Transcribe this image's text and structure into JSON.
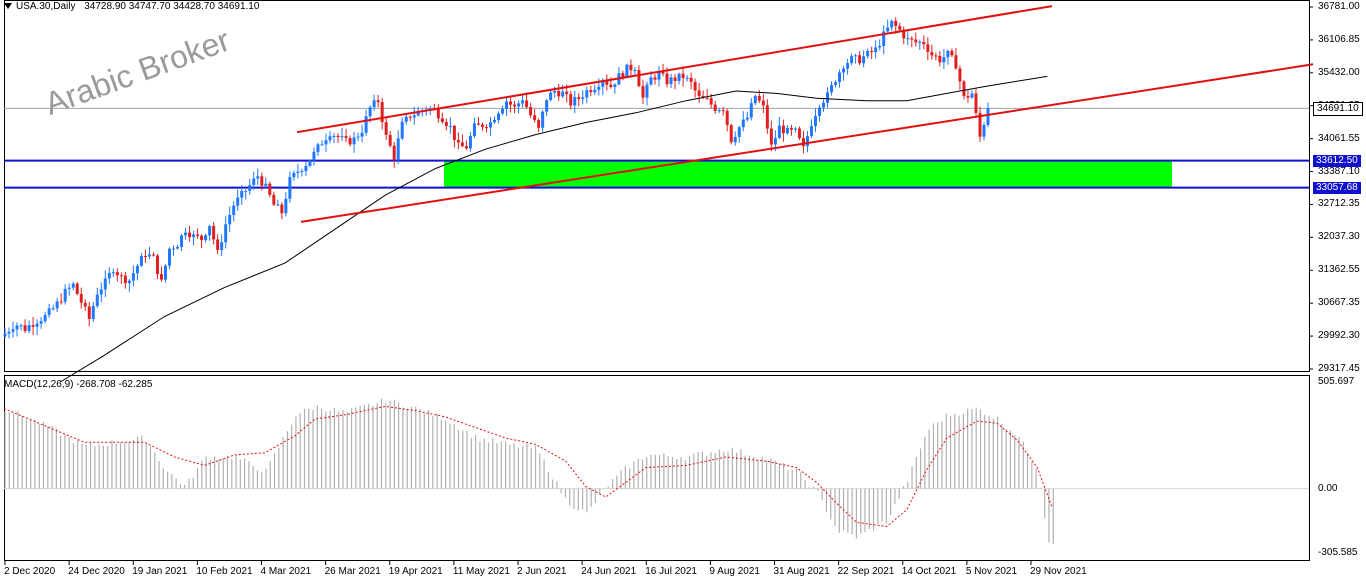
{
  "header": {
    "symbol": "USA.30,Daily",
    "ohlc": "34728.90 34747.70 34428.70 34691.10"
  },
  "watermark": "Arabic Broker",
  "macd_label": "MACD(12,26,9) -268.708 -62.285",
  "colors": {
    "bull": "#1f78ff",
    "bear": "#e02020",
    "channel": "#e01010",
    "support_lines": "#1010d0",
    "zone": "#00ff00",
    "ma": "#000000",
    "macd_hist": "#b0b0b0",
    "macd_signal": "#e01010"
  },
  "chart_data": [
    {
      "type": "candlestick",
      "ylim": [
        29317.45,
        36781.0
      ],
      "y_ticks": [
        "36781.00",
        "36106.85",
        "35432.00",
        "34761.35",
        "34061.55",
        "33387.10",
        "32712.35",
        "32037.30",
        "31362.55",
        "30667.35",
        "29992.30",
        "29317.45"
      ],
      "x_ticks": [
        "2 Dec 2020",
        "24 Dec 2020",
        "19 Jan 2021",
        "10 Feb 2021",
        "4 Mar 2021",
        "26 Mar 2021",
        "19 Apr 2021",
        "11 May 2021",
        "2 Jun 2021",
        "24 Jun 2021",
        "16 Jul 2021",
        "9 Aug 2021",
        "31 Aug 2021",
        "22 Sep 2021",
        "14 Oct 2021",
        "5 Nov 2021",
        "29 Nov 2021"
      ],
      "price_badges": [
        {
          "label": "34691.10",
          "value": 34691.1,
          "kind": "price"
        },
        {
          "label": "33612.50",
          "value": 33612.5,
          "kind": "blue"
        },
        {
          "label": "33057.68",
          "value": 33057.68,
          "kind": "blue"
        }
      ],
      "horizontal_lines": [
        33612.5,
        33057.68
      ],
      "zone": {
        "from": 33057.68,
        "to": 33612.5,
        "start": "11 May 2021",
        "end": "after 29 Nov 2021"
      },
      "channel_lines": [
        {
          "from_value": 34200,
          "to_value": 36800
        },
        {
          "from_value": 32350,
          "to_value": 35600
        }
      ],
      "close_path": [
        [
          0,
          30050
        ],
        [
          10,
          30250
        ],
        [
          20,
          30150
        ],
        [
          30,
          30300
        ],
        [
          40,
          30400
        ],
        [
          50,
          30600
        ],
        [
          60,
          30900
        ],
        [
          68,
          31050
        ],
        [
          76,
          30700
        ],
        [
          84,
          30350
        ],
        [
          92,
          30900
        ],
        [
          100,
          31100
        ],
        [
          108,
          31400
        ],
        [
          116,
          31200
        ],
        [
          124,
          31150
        ],
        [
          132,
          31450
        ],
        [
          140,
          31700
        ],
        [
          148,
          31600
        ],
        [
          156,
          31100
        ],
        [
          164,
          31800
        ],
        [
          172,
          31900
        ],
        [
          180,
          32200
        ],
        [
          188,
          32050
        ],
        [
          196,
          32000
        ],
        [
          204,
          32300
        ],
        [
          212,
          31700
        ],
        [
          220,
          32300
        ],
        [
          228,
          32700
        ],
        [
          236,
          32900
        ],
        [
          244,
          33100
        ],
        [
          252,
          33300
        ],
        [
          260,
          33050
        ],
        [
          268,
          32700
        ],
        [
          276,
          32550
        ],
        [
          284,
          33200
        ],
        [
          292,
          33400
        ],
        [
          300,
          33550
        ],
        [
          308,
          33750
        ],
        [
          316,
          34000
        ],
        [
          324,
          34200
        ],
        [
          332,
          34100
        ],
        [
          340,
          34000
        ],
        [
          348,
          34050
        ],
        [
          356,
          34250
        ],
        [
          364,
          34700
        ],
        [
          372,
          34850
        ],
        [
          380,
          34100
        ],
        [
          388,
          33700
        ],
        [
          396,
          34350
        ],
        [
          404,
          34550
        ],
        [
          412,
          34600
        ],
        [
          420,
          34700
        ],
        [
          428,
          34650
        ],
        [
          436,
          34500
        ],
        [
          444,
          34300
        ],
        [
          452,
          33900
        ],
        [
          460,
          33900
        ],
        [
          468,
          34300
        ],
        [
          476,
          34350
        ],
        [
          484,
          34400
        ],
        [
          492,
          34650
        ],
        [
          500,
          34850
        ],
        [
          508,
          34700
        ],
        [
          516,
          34900
        ],
        [
          524,
          34550
        ],
        [
          532,
          34250
        ],
        [
          540,
          34900
        ],
        [
          548,
          35050
        ],
        [
          556,
          35000
        ],
        [
          564,
          34800
        ],
        [
          572,
          34900
        ],
        [
          580,
          35050
        ],
        [
          588,
          35150
        ],
        [
          596,
          35300
        ],
        [
          604,
          35150
        ],
        [
          612,
          35350
        ],
        [
          620,
          35500
        ],
        [
          628,
          35550
        ],
        [
          636,
          34900
        ],
        [
          644,
          35300
        ],
        [
          652,
          35400
        ],
        [
          660,
          35250
        ],
        [
          668,
          35300
        ],
        [
          676,
          35350
        ],
        [
          684,
          35200
        ],
        [
          692,
          34900
        ],
        [
          700,
          34850
        ],
        [
          708,
          34700
        ],
        [
          716,
          34700
        ],
        [
          724,
          34050
        ],
        [
          732,
          34300
        ],
        [
          740,
          34500
        ],
        [
          748,
          34950
        ],
        [
          756,
          34700
        ],
        [
          764,
          33900
        ],
        [
          772,
          34300
        ],
        [
          780,
          34200
        ],
        [
          788,
          34200
        ],
        [
          796,
          33850
        ],
        [
          804,
          34400
        ],
        [
          812,
          34800
        ],
        [
          820,
          34950
        ],
        [
          828,
          35300
        ],
        [
          836,
          35600
        ],
        [
          844,
          35700
        ],
        [
          852,
          35700
        ],
        [
          860,
          35800
        ],
        [
          868,
          35900
        ],
        [
          876,
          36200
        ],
        [
          884,
          36450
        ],
        [
          892,
          36300
        ],
        [
          900,
          36100
        ],
        [
          908,
          36050
        ],
        [
          916,
          36050
        ],
        [
          924,
          35800
        ],
        [
          932,
          35700
        ],
        [
          940,
          35800
        ],
        [
          948,
          35600
        ],
        [
          956,
          34900
        ],
        [
          964,
          35000
        ],
        [
          972,
          34100
        ],
        [
          980,
          34691.1
        ]
      ],
      "ma_path": [
        [
          56,
          29050
        ],
        [
          100,
          29600
        ],
        [
          160,
          30400
        ],
        [
          220,
          31000
        ],
        [
          280,
          31500
        ],
        [
          330,
          32200
        ],
        [
          380,
          32900
        ],
        [
          430,
          33450
        ],
        [
          480,
          33850
        ],
        [
          530,
          34150
        ],
        [
          580,
          34400
        ],
        [
          630,
          34600
        ],
        [
          680,
          34850
        ],
        [
          730,
          35050
        ],
        [
          770,
          35000
        ],
        [
          810,
          34900
        ],
        [
          860,
          34850
        ],
        [
          900,
          34850
        ],
        [
          940,
          35000
        ],
        [
          980,
          35150
        ],
        [
          1040,
          35350
        ]
      ]
    },
    {
      "type": "bar",
      "name": "MACD",
      "ylim": [
        -305.585,
        505.697
      ],
      "y_ticks": [
        "505.697",
        "0.00",
        "-305.585"
      ],
      "hist": [
        [
          0,
          380
        ],
        [
          40,
          300
        ],
        [
          80,
          200
        ],
        [
          110,
          220
        ],
        [
          140,
          240
        ],
        [
          160,
          90
        ],
        [
          180,
          10
        ],
        [
          200,
          150
        ],
        [
          230,
          150
        ],
        [
          260,
          80
        ],
        [
          290,
          350
        ],
        [
          310,
          390
        ],
        [
          340,
          360
        ],
        [
          380,
          420
        ],
        [
          410,
          380
        ],
        [
          440,
          330
        ],
        [
          470,
          240
        ],
        [
          500,
          210
        ],
        [
          530,
          190
        ],
        [
          560,
          -60
        ],
        [
          580,
          -120
        ],
        [
          600,
          10
        ],
        [
          620,
          100
        ],
        [
          640,
          160
        ],
        [
          680,
          150
        ],
        [
          720,
          190
        ],
        [
          760,
          140
        ],
        [
          790,
          80
        ],
        [
          810,
          -20
        ],
        [
          830,
          -200
        ],
        [
          850,
          -230
        ],
        [
          880,
          -150
        ],
        [
          900,
          40
        ],
        [
          920,
          280
        ],
        [
          940,
          350
        ],
        [
          970,
          380
        ],
        [
          990,
          330
        ],
        [
          1010,
          250
        ],
        [
          1030,
          90
        ],
        [
          1040,
          -250
        ]
      ],
      "signal": [
        [
          0,
          380
        ],
        [
          40,
          300
        ],
        [
          80,
          220
        ],
        [
          110,
          220
        ],
        [
          140,
          220
        ],
        [
          170,
          150
        ],
        [
          200,
          110
        ],
        [
          230,
          160
        ],
        [
          260,
          170
        ],
        [
          290,
          250
        ],
        [
          310,
          330
        ],
        [
          340,
          350
        ],
        [
          380,
          390
        ],
        [
          410,
          370
        ],
        [
          440,
          340
        ],
        [
          470,
          290
        ],
        [
          500,
          240
        ],
        [
          530,
          210
        ],
        [
          560,
          130
        ],
        [
          580,
          10
        ],
        [
          600,
          -40
        ],
        [
          620,
          30
        ],
        [
          640,
          100
        ],
        [
          680,
          110
        ],
        [
          720,
          150
        ],
        [
          760,
          130
        ],
        [
          790,
          100
        ],
        [
          810,
          30
        ],
        [
          830,
          -70
        ],
        [
          850,
          -160
        ],
        [
          880,
          -180
        ],
        [
          900,
          -100
        ],
        [
          920,
          90
        ],
        [
          940,
          240
        ],
        [
          970,
          320
        ],
        [
          990,
          310
        ],
        [
          1010,
          230
        ],
        [
          1030,
          100
        ],
        [
          1045,
          -90
        ]
      ]
    }
  ]
}
